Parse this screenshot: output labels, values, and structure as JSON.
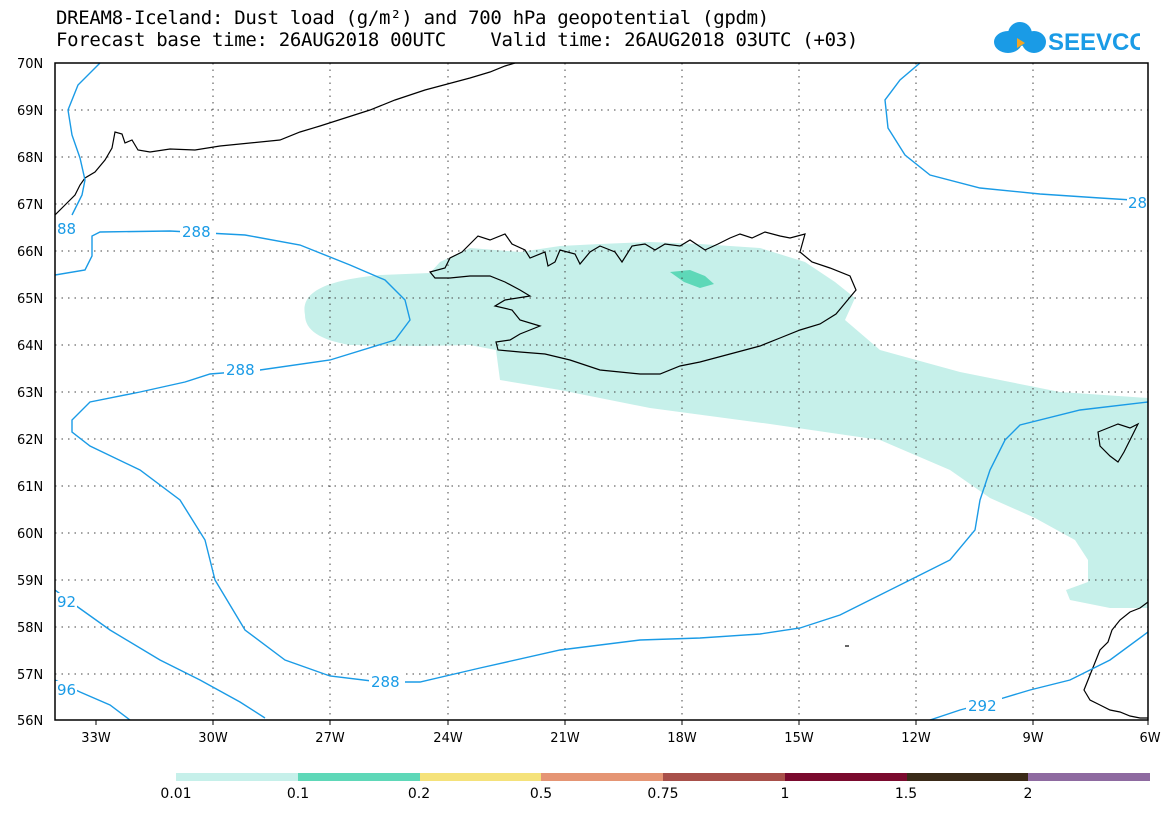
{
  "header": {
    "line1": "DREAM8-Iceland: Dust load (g/m²) and 700 hPa geopotential (gpdm)",
    "line2": "Forecast base time: 26AUG2018 00UTC    Valid time: 26AUG2018 03UTC (+03)"
  },
  "logo": {
    "text": "SEEVCCC",
    "color": "#1a9be6"
  },
  "map": {
    "lat_labels": [
      "70N",
      "69N",
      "68N",
      "67N",
      "66N",
      "65N",
      "64N",
      "63N",
      "62N",
      "61N",
      "60N",
      "59N",
      "58N",
      "57N",
      "56N"
    ],
    "lon_labels": [
      "33W",
      "30W",
      "27W",
      "24W",
      "21W",
      "18W",
      "15W",
      "12W",
      "9W",
      "6W"
    ],
    "contour_labels": [
      "288",
      "288",
      "288",
      "288",
      "292",
      "92",
      "96",
      "88",
      "28"
    ],
    "dust_fill_color": "#c6f0ea",
    "dust_core_color": "#5ed8b8",
    "contour_color": "#1a9be6"
  },
  "colorbar": {
    "labels": [
      "0.01",
      "0.1",
      "0.2",
      "0.5",
      "0.75",
      "1",
      "1.5",
      "2"
    ],
    "colors": [
      "#c6f0ea",
      "#5ed8b8",
      "#f5e27a",
      "#e59574",
      "#a8504a",
      "#7a0a2e",
      "#3a2a18",
      "#8e6aa0"
    ]
  }
}
